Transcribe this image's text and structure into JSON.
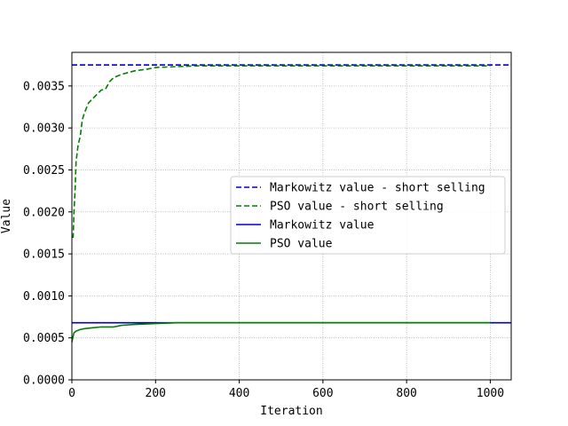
{
  "chart_data": {
    "type": "line",
    "title": "",
    "xlabel": "Iteration",
    "ylabel": "Value",
    "xlim": [
      0,
      1050
    ],
    "ylim": [
      0,
      0.0039
    ],
    "xticks": [
      0,
      200,
      400,
      600,
      800,
      1000
    ],
    "xtick_labels": [
      "0",
      "200",
      "400",
      "600",
      "800",
      "1000"
    ],
    "yticks": [
      0.0,
      0.0005,
      0.001,
      0.0015,
      0.002,
      0.0025,
      0.003,
      0.0035
    ],
    "ytick_labels": [
      "0.0000",
      "0.0005",
      "0.0010",
      "0.0015",
      "0.0020",
      "0.0025",
      "0.0030",
      "0.0035"
    ],
    "grid": true,
    "legend_position": "center-right",
    "series": [
      {
        "name": "Markowitz value - short selling",
        "kind": "hline",
        "color": "#0000cc",
        "dash": "dashed",
        "value": 0.00375
      },
      {
        "name": "PSO value - short selling",
        "kind": "line",
        "color": "#008000",
        "dash": "dashed",
        "x": [
          0,
          3,
          5,
          8,
          10,
          15,
          20,
          25,
          30,
          40,
          50,
          60,
          70,
          80,
          90,
          100,
          120,
          150,
          180,
          200,
          250,
          300,
          400,
          500,
          600,
          800,
          1000
        ],
        "y": [
          0.0017,
          0.0017,
          0.002,
          0.0023,
          0.0026,
          0.0028,
          0.0029,
          0.0031,
          0.00318,
          0.0033,
          0.00335,
          0.0034,
          0.00345,
          0.00346,
          0.00355,
          0.0036,
          0.00364,
          0.00368,
          0.0037,
          0.00372,
          0.00373,
          0.00374,
          0.00374,
          0.00374,
          0.00374,
          0.00374,
          0.00374
        ]
      },
      {
        "name": "Markowitz value",
        "kind": "hline",
        "color": "#0000cc",
        "dash": "solid",
        "value": 0.00068
      },
      {
        "name": "PSO value",
        "kind": "line",
        "color": "#008000",
        "dash": "solid",
        "x": [
          0,
          3,
          5,
          10,
          20,
          30,
          50,
          70,
          100,
          110,
          120,
          150,
          200,
          250,
          300,
          500,
          700,
          1000
        ],
        "y": [
          0.00045,
          0.00052,
          0.00056,
          0.00058,
          0.0006,
          0.00061,
          0.00062,
          0.00063,
          0.00063,
          0.00064,
          0.00065,
          0.00066,
          0.00067,
          0.00068,
          0.00068,
          0.00068,
          0.00068,
          0.00068
        ]
      }
    ]
  }
}
